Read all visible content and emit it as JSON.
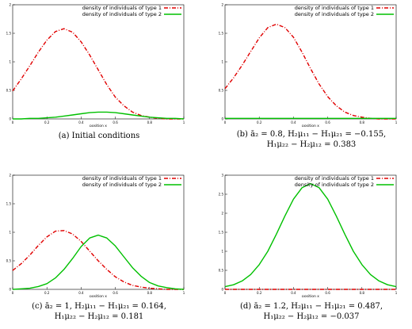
{
  "chart_data": [
    {
      "type": "line",
      "xlabel": "position x",
      "xlim": [
        0,
        1
      ],
      "ylim": [
        0,
        2
      ],
      "x_ticks": [
        {
          "v": 0,
          "label": "0"
        },
        {
          "v": 0.2,
          "label": "0.2"
        },
        {
          "v": 0.4,
          "label": "0.4"
        },
        {
          "v": 0.6,
          "label": "0.6"
        },
        {
          "v": 0.8,
          "label": "0.8"
        },
        {
          "v": 1,
          "label": "1"
        }
      ],
      "y_ticks": [
        {
          "v": 0,
          "label": "0"
        },
        {
          "v": 0.5,
          "label": "0.5"
        },
        {
          "v": 1,
          "label": "1"
        },
        {
          "v": 1.5,
          "label": "1.5"
        },
        {
          "v": 2,
          "label": "2"
        }
      ],
      "caption_text": "(a) Initial conditions",
      "legend_position": "top-right",
      "series": [
        {
          "name": "density of  individuals of type 1",
          "color": "#e00000",
          "style": "dashed",
          "x": [
            0,
            0.05,
            0.1,
            0.15,
            0.2,
            0.25,
            0.3,
            0.35,
            0.4,
            0.45,
            0.5,
            0.55,
            0.6,
            0.65,
            0.7,
            0.75,
            0.8,
            0.85,
            0.9,
            0.95,
            1
          ],
          "y": [
            0.49,
            0.7,
            0.93,
            1.17,
            1.38,
            1.53,
            1.58,
            1.52,
            1.35,
            1.12,
            0.86,
            0.6,
            0.38,
            0.23,
            0.12,
            0.06,
            0.03,
            0.01,
            0.0,
            0.0,
            0.0
          ]
        },
        {
          "name": "density of  individuals of type 2",
          "color": "#00c000",
          "style": "solid",
          "x": [
            0,
            0.05,
            0.1,
            0.15,
            0.2,
            0.25,
            0.3,
            0.35,
            0.4,
            0.45,
            0.5,
            0.55,
            0.6,
            0.65,
            0.7,
            0.75,
            0.8,
            0.85,
            0.9,
            0.95,
            1
          ],
          "y": [
            0.0,
            0.0,
            0.01,
            0.01,
            0.02,
            0.03,
            0.05,
            0.07,
            0.09,
            0.11,
            0.12,
            0.12,
            0.11,
            0.09,
            0.07,
            0.05,
            0.03,
            0.02,
            0.01,
            0.01,
            0.0
          ]
        }
      ]
    },
    {
      "type": "line",
      "xlabel": "position x",
      "xlim": [
        0,
        1
      ],
      "ylim": [
        0,
        2
      ],
      "x_ticks": [
        {
          "v": 0,
          "label": "0"
        },
        {
          "v": 0.2,
          "label": "0.2"
        },
        {
          "v": 0.4,
          "label": "0.4"
        },
        {
          "v": 0.6,
          "label": "0.6"
        },
        {
          "v": 0.8,
          "label": "0.8"
        },
        {
          "v": 1,
          "label": "1"
        }
      ],
      "y_ticks": [
        {
          "v": 0,
          "label": "0"
        },
        {
          "v": 0.5,
          "label": "0.5"
        },
        {
          "v": 1,
          "label": "1"
        },
        {
          "v": 1.5,
          "label": "1.5"
        },
        {
          "v": 2,
          "label": "2"
        }
      ],
      "caption_line1": "(b) ā₂ = 0.8, H₂μ₁₁ − H₁μ₂₁ = −0.155,",
      "caption_line2": "H₁μ₂₂ − H₂μ₁₂ = 0.383",
      "legend_position": "top-right",
      "series": [
        {
          "name": "density of individuals of type 1",
          "color": "#e00000",
          "style": "dashed",
          "x": [
            0,
            0.05,
            0.1,
            0.15,
            0.2,
            0.25,
            0.3,
            0.35,
            0.4,
            0.45,
            0.5,
            0.55,
            0.6,
            0.65,
            0.7,
            0.75,
            0.8,
            0.85,
            0.9,
            0.95,
            1
          ],
          "y": [
            0.53,
            0.72,
            0.94,
            1.18,
            1.42,
            1.6,
            1.66,
            1.6,
            1.43,
            1.17,
            0.88,
            0.61,
            0.39,
            0.23,
            0.12,
            0.06,
            0.03,
            0.01,
            0.0,
            0.0,
            0.0
          ]
        },
        {
          "name": "density of individuals of type 2",
          "color": "#00c000",
          "style": "solid",
          "x": [
            0,
            0.1,
            0.2,
            0.3,
            0.4,
            0.5,
            0.6,
            0.7,
            0.8,
            0.9,
            1
          ],
          "y": [
            0.01,
            0.01,
            0.01,
            0.01,
            0.01,
            0.01,
            0.01,
            0.01,
            0.01,
            0.01,
            0.01
          ]
        }
      ]
    },
    {
      "type": "line",
      "xlabel": "position x",
      "xlim": [
        0,
        1
      ],
      "ylim": [
        0,
        2
      ],
      "x_ticks": [
        {
          "v": 0,
          "label": "0"
        },
        {
          "v": 0.2,
          "label": "0.2"
        },
        {
          "v": 0.4,
          "label": "0.4"
        },
        {
          "v": 0.6,
          "label": "0.6"
        },
        {
          "v": 0.8,
          "label": "0.8"
        },
        {
          "v": 1,
          "label": "1"
        }
      ],
      "y_ticks": [
        {
          "v": 0,
          "label": "0"
        },
        {
          "v": 0.5,
          "label": "0.5"
        },
        {
          "v": 1,
          "label": "1"
        },
        {
          "v": 1.5,
          "label": "1.5"
        },
        {
          "v": 2,
          "label": "2"
        }
      ],
      "caption_line1": "(c) ā₂ = 1, H₂μ₁₁ − H₁μ₂₁ = 0.164,",
      "caption_line2": "H₁μ₂₂ − H₂μ₁₂ = 0.181",
      "legend_position": "top-right",
      "series": [
        {
          "name": "density of individuals of type 1",
          "color": "#e00000",
          "style": "dashed",
          "x": [
            0,
            0.05,
            0.1,
            0.15,
            0.2,
            0.25,
            0.3,
            0.35,
            0.4,
            0.45,
            0.5,
            0.55,
            0.6,
            0.65,
            0.7,
            0.75,
            0.8,
            0.85,
            0.9,
            0.95,
            1
          ],
          "y": [
            0.33,
            0.45,
            0.6,
            0.77,
            0.92,
            1.02,
            1.03,
            0.97,
            0.84,
            0.67,
            0.5,
            0.35,
            0.22,
            0.13,
            0.07,
            0.04,
            0.02,
            0.01,
            0.0,
            0.0,
            0.0
          ]
        },
        {
          "name": "density of individuals of type 2",
          "color": "#00c000",
          "style": "solid",
          "x": [
            0,
            0.05,
            0.1,
            0.15,
            0.2,
            0.25,
            0.3,
            0.35,
            0.4,
            0.45,
            0.5,
            0.55,
            0.6,
            0.65,
            0.7,
            0.75,
            0.8,
            0.85,
            0.9,
            0.95,
            1
          ],
          "y": [
            0.0,
            0.01,
            0.02,
            0.05,
            0.1,
            0.2,
            0.35,
            0.54,
            0.75,
            0.9,
            0.95,
            0.9,
            0.76,
            0.57,
            0.38,
            0.23,
            0.12,
            0.06,
            0.03,
            0.01,
            0.0
          ]
        }
      ]
    },
    {
      "type": "line",
      "xlabel": "position x",
      "xlim": [
        0,
        1
      ],
      "ylim": [
        0,
        3
      ],
      "x_ticks": [
        {
          "v": 0,
          "label": "0"
        },
        {
          "v": 0.2,
          "label": "0.2"
        },
        {
          "v": 0.4,
          "label": "0.4"
        },
        {
          "v": 0.6,
          "label": "0.6"
        },
        {
          "v": 0.8,
          "label": "0.8"
        },
        {
          "v": 1,
          "label": "1"
        }
      ],
      "y_ticks": [
        {
          "v": 0,
          "label": "0"
        },
        {
          "v": 0.5,
          "label": "0.5"
        },
        {
          "v": 1,
          "label": "1"
        },
        {
          "v": 1.5,
          "label": "1.5"
        },
        {
          "v": 2,
          "label": "2"
        },
        {
          "v": 2.5,
          "label": "2.5"
        },
        {
          "v": 3,
          "label": "3"
        }
      ],
      "caption_line1": "(d) ā₂ = 1.2, H₂μ₁₁ − H₁μ₂₁ = 0.487,",
      "caption_line2": "H₁μ₂₂ − H₂μ₁₂ = −0.037",
      "legend_position": "top-right",
      "series": [
        {
          "name": "density of individuals of type 1",
          "color": "#e00000",
          "style": "dashed",
          "x": [
            0,
            0.1,
            0.2,
            0.3,
            0.4,
            0.5,
            0.6,
            0.7,
            0.8,
            0.9,
            1
          ],
          "y": [
            0.0,
            0.0,
            0.0,
            0.0,
            0.0,
            0.0,
            0.0,
            0.0,
            0.0,
            0.0,
            0.0
          ]
        },
        {
          "name": "density of individuals of type 2",
          "color": "#00c000",
          "style": "solid",
          "x": [
            0,
            0.05,
            0.1,
            0.15,
            0.2,
            0.25,
            0.3,
            0.35,
            0.4,
            0.45,
            0.5,
            0.55,
            0.6,
            0.65,
            0.7,
            0.75,
            0.8,
            0.85,
            0.9,
            0.95,
            1
          ],
          "y": [
            0.07,
            0.12,
            0.22,
            0.39,
            0.65,
            1.0,
            1.45,
            1.93,
            2.37,
            2.67,
            2.78,
            2.67,
            2.37,
            1.93,
            1.45,
            1.0,
            0.65,
            0.39,
            0.22,
            0.12,
            0.07
          ]
        }
      ]
    }
  ]
}
